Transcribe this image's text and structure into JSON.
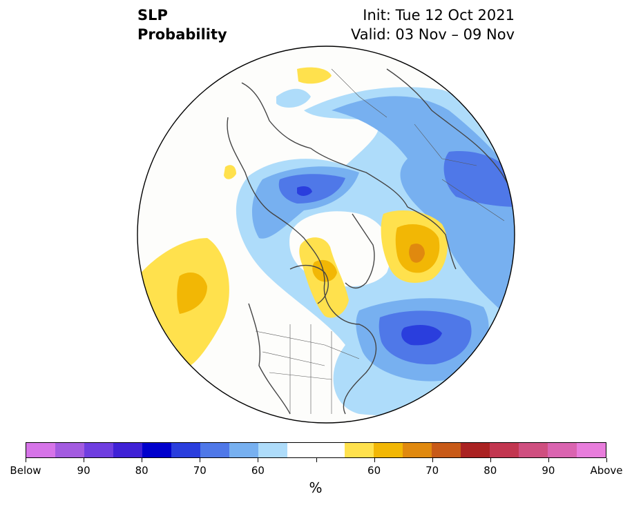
{
  "header": {
    "variable": "SLP",
    "product": "Probability",
    "init": "Init: Tue 12 Oct 2021",
    "valid": "Valid: 03 Nov – 09 Nov"
  },
  "colorbar": {
    "colors": [
      "#d674e8",
      "#a35be0",
      "#6f3ee0",
      "#3f21d6",
      "#0000cc",
      "#2a3edd",
      "#4f78e8",
      "#77b0f0",
      "#aedcfa",
      "#ffffff",
      "#ffffff",
      "#ffe14d",
      "#f2b705",
      "#e0890f",
      "#c85a18",
      "#aa2222",
      "#c23650",
      "#cf4f80",
      "#da64b0",
      "#e87ddc"
    ],
    "tick_labels": [
      "Below",
      "90",
      "80",
      "70",
      "60",
      "60",
      "70",
      "80",
      "90",
      "Above"
    ],
    "unit": "%"
  },
  "colors": {
    "below_60": "#aedcfa",
    "below_70": "#77b0f0",
    "below_80": "#4f78e8",
    "below_90": "#2a3edd",
    "above_60": "#ffe14d",
    "above_70": "#f2b705",
    "above_80": "#e0890f",
    "coast": "#444444"
  }
}
